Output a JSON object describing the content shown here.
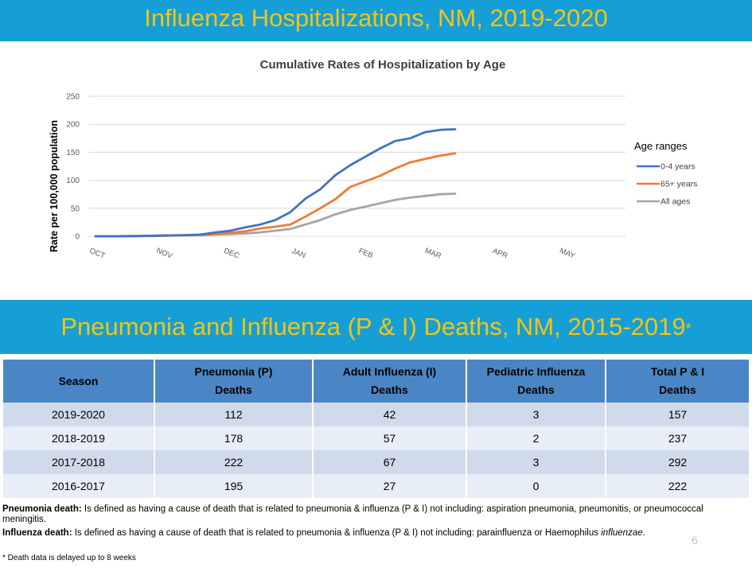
{
  "slide": {
    "title": "Influenza Hospitalizations, NM, 2019-2020",
    "section_title": "Pneumonia and Influenza (P & I) Deaths, NM, 2015-2019",
    "section_title_mark": "*",
    "page_number": "6",
    "colors": {
      "banner": "#159fd6",
      "banner_text": "#f5c40f",
      "table_header": "#4a86c5",
      "row_odd": "#cfdaeb",
      "row_even": "#e8eef7"
    }
  },
  "chart_data": {
    "type": "line",
    "title": "Cumulative Rates of Hospitalization by Age",
    "xlabel": "",
    "ylabel": "Rate per 100,000 population",
    "ylim": [
      0,
      250
    ],
    "yticks": [
      "0",
      "50",
      "100",
      "150",
      "200",
      "250"
    ],
    "x_tick_labels": [
      "OCT",
      "NOV",
      "DEC",
      "JAN",
      "FEB",
      "MAR",
      "APR",
      "MAY"
    ],
    "grid": true,
    "legend_title": "Age ranges",
    "legend_position": "right",
    "series": [
      {
        "name": "0-4 years",
        "color": "#4472c4",
        "values": [
          0,
          0,
          0.3,
          0.5,
          1,
          1.5,
          2,
          3,
          7,
          10,
          16,
          21,
          29,
          43,
          67,
          84,
          109,
          127,
          142,
          157,
          170,
          175,
          186,
          190,
          191
        ]
      },
      {
        "name": "65+ years",
        "color": "#ed7d31",
        "values": [
          0,
          0,
          0.3,
          0.5,
          1,
          1.5,
          2,
          2.5,
          4,
          6,
          9,
          14,
          17,
          21,
          35,
          50,
          66,
          88,
          98,
          108,
          121,
          132,
          138,
          144,
          148
        ]
      },
      {
        "name": "All ages",
        "color": "#a5a5a5",
        "values": [
          0,
          0,
          0.2,
          0.3,
          0.5,
          1,
          1.5,
          2,
          3,
          4,
          5,
          7,
          10,
          13,
          21,
          29,
          39,
          47,
          53,
          59,
          65,
          69,
          72,
          75,
          76
        ]
      }
    ]
  },
  "table": {
    "headers": [
      {
        "line1": "Season",
        "line2": ""
      },
      {
        "line1": "Pneumonia (P)",
        "line2": "Deaths"
      },
      {
        "line1": "Adult Influenza (I)",
        "line2": "Deaths"
      },
      {
        "line1": "Pediatric Influenza",
        "line2": "Deaths"
      },
      {
        "line1": "Total P & I",
        "line2": "Deaths"
      }
    ],
    "rows": [
      [
        "2019-2020",
        "112",
        "42",
        "3",
        "157"
      ],
      [
        "2018-2019",
        "178",
        "57",
        "2",
        "237"
      ],
      [
        "2017-2018",
        "222",
        "67",
        "3",
        "292"
      ],
      [
        "2016-2017",
        "195",
        "27",
        "0",
        "222"
      ]
    ]
  },
  "notes": {
    "pneumonia_label": "Pneumonia death:",
    "pneumonia_text": " Is defined as having a cause of death that is related to pneumonia & influenza (P & I) not including: aspiration pneumonia, pneumonitis,  or pneumococcal meningitis.",
    "influenza_label": "Influenza death:",
    "influenza_text": " Is defined as having a cause of death that is related to pneumonia & influenza (P & I) not including: parainfluenza or Haemophilus ",
    "influenza_italic": "influenzae",
    "influenza_end": ".",
    "footnote": "* Death data is delayed up to 8 weeks"
  }
}
